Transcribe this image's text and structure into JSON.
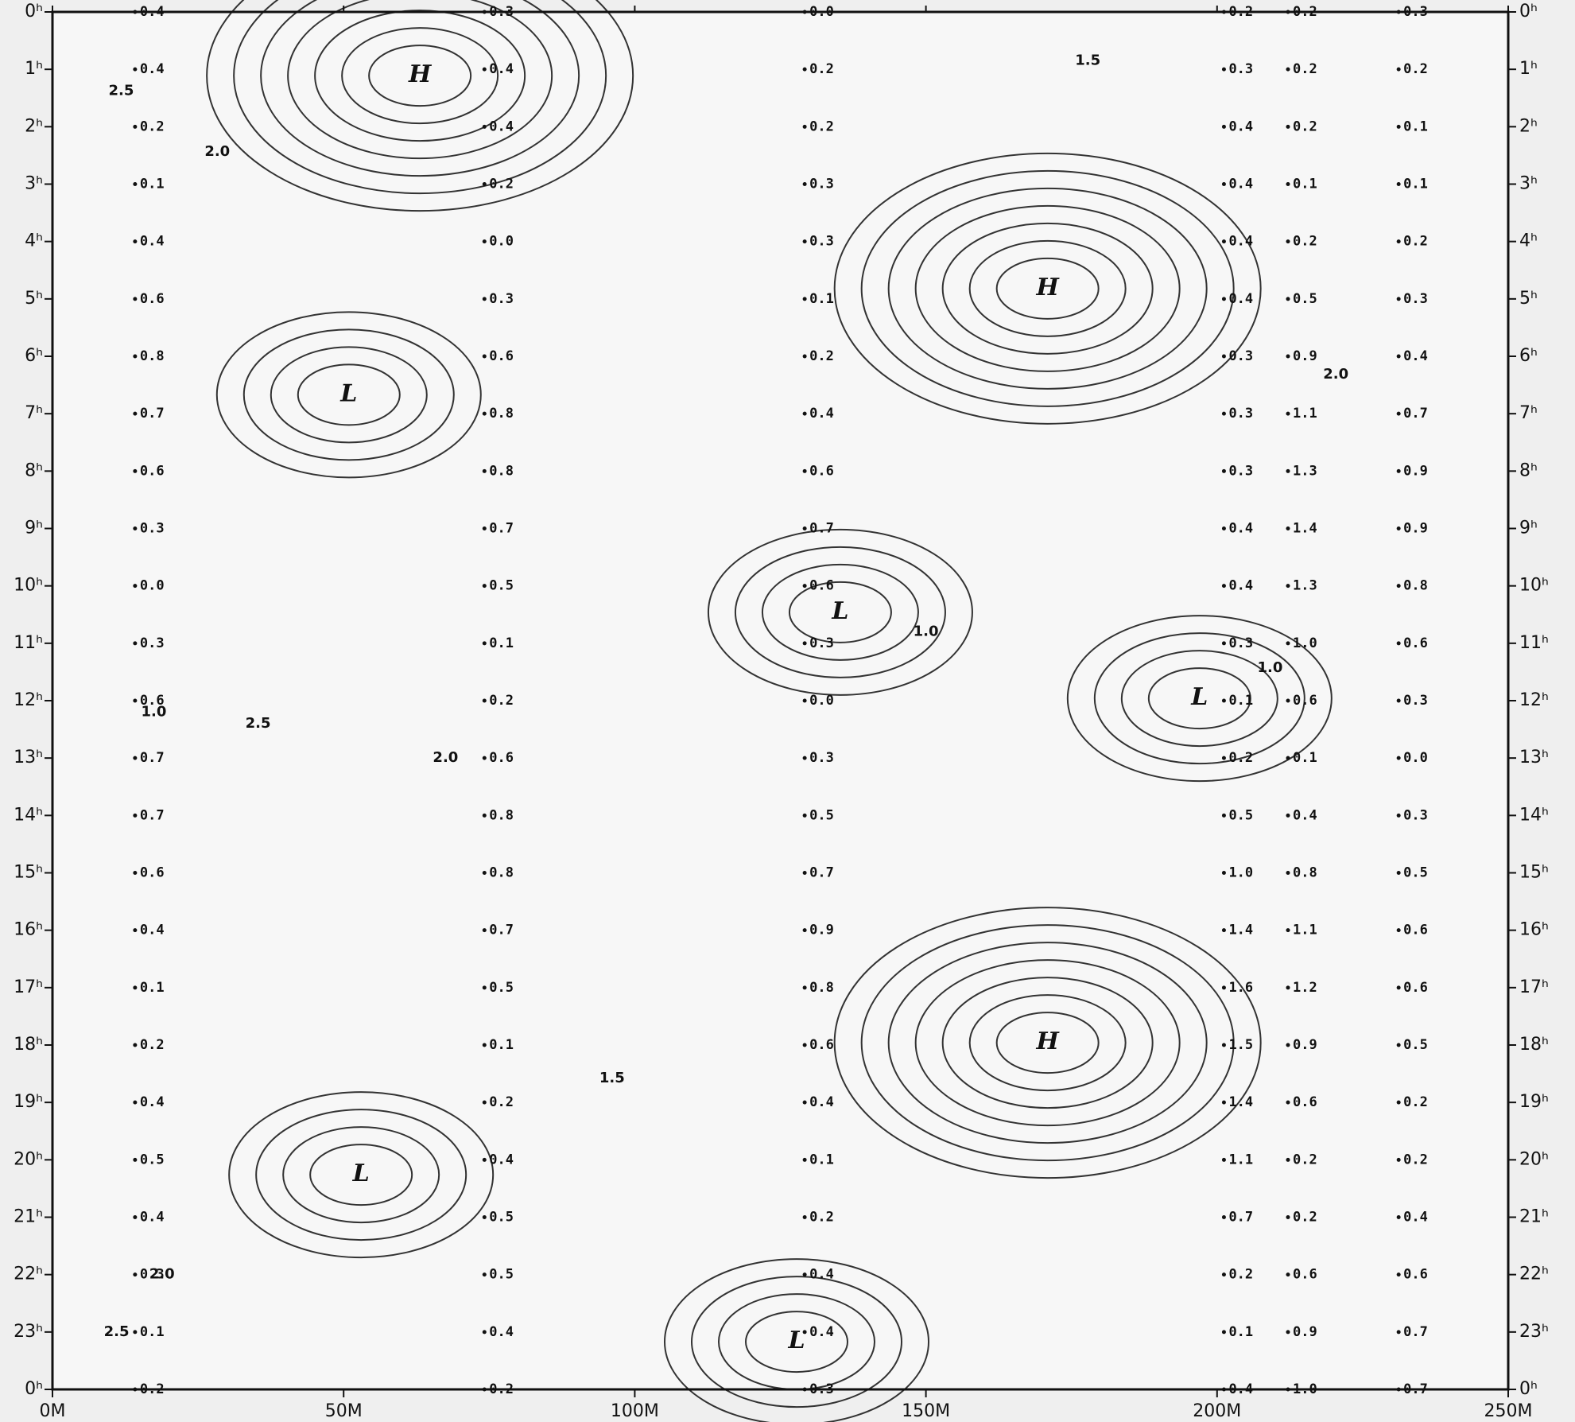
{
  "chart_data": {
    "type": "contour",
    "xlim": [
      0,
      250
    ],
    "xticks": [
      {
        "value": 0,
        "label": "0M"
      },
      {
        "value": 50,
        "label": "50M"
      },
      {
        "value": 100,
        "label": "100M"
      },
      {
        "value": 150,
        "label": "150M"
      },
      {
        "value": 200,
        "label": "200M"
      },
      {
        "value": 250,
        "label": "250M"
      }
    ],
    "ylim": [
      0,
      24
    ],
    "invert_y": true,
    "yticks": [
      {
        "value": 0,
        "label": "0ʰ"
      },
      {
        "value": 1,
        "label": "1ʰ"
      },
      {
        "value": 2,
        "label": "2ʰ"
      },
      {
        "value": 3,
        "label": "3ʰ"
      },
      {
        "value": 4,
        "label": "4ʰ"
      },
      {
        "value": 5,
        "label": "5ʰ"
      },
      {
        "value": 6,
        "label": "6ʰ"
      },
      {
        "value": 7,
        "label": "7ʰ"
      },
      {
        "value": 8,
        "label": "8ʰ"
      },
      {
        "value": 9,
        "label": "9ʰ"
      },
      {
        "value": 10,
        "label": "10ʰ"
      },
      {
        "value": 11,
        "label": "11ʰ"
      },
      {
        "value": 12,
        "label": "12ʰ"
      },
      {
        "value": 13,
        "label": "13ʰ"
      },
      {
        "value": 14,
        "label": "14ʰ"
      },
      {
        "value": 15,
        "label": "15ʰ"
      },
      {
        "value": 16,
        "label": "16ʰ"
      },
      {
        "value": 17,
        "label": "17ʰ"
      },
      {
        "value": 18,
        "label": "18ʰ"
      },
      {
        "value": 19,
        "label": "19ʰ"
      },
      {
        "value": 20,
        "label": "20ʰ"
      },
      {
        "value": 21,
        "label": "21ʰ"
      },
      {
        "value": 22,
        "label": "22ʰ"
      },
      {
        "value": 23,
        "label": "23ʰ"
      },
      {
        "value": 24,
        "label": "0ʰ"
      }
    ],
    "color": "#111111",
    "series": [
      {
        "x": 15,
        "values": [
          0.4,
          0.4,
          0.2,
          0.1,
          0.4,
          0.6,
          0.8,
          0.7,
          0.6,
          0.3,
          0.0,
          0.3,
          0.6,
          0.7,
          0.7,
          0.6,
          0.4,
          0.1,
          0.2,
          0.4,
          0.5,
          0.4,
          0.3,
          0.1,
          0.2
        ],
        "value_labels": [
          "0.4",
          "0.4",
          "0.2",
          "0.1",
          "0.4",
          "0.6",
          "0.8",
          "0.7",
          "0.6",
          "0.3",
          "0.0",
          "0.3",
          "0.6",
          "0.7",
          "0.7",
          "0.6",
          "0.4",
          "0.1",
          "0.2",
          "0.4",
          "0.5",
          "0.4",
          "0.3",
          "0.1",
          "0.2"
        ]
      },
      {
        "x": 75,
        "values": [
          0.3,
          0.4,
          0.4,
          0.2,
          0.0,
          0.3,
          0.6,
          0.8,
          0.8,
          0.7,
          0.5,
          0.1,
          0.2,
          0.6,
          0.8,
          0.8,
          0.7,
          0.5,
          0.1,
          0.2,
          0.4,
          0.5,
          0.5,
          0.4,
          0.2
        ],
        "value_labels": [
          "0.3",
          "0.4",
          "0.4",
          "0.2",
          "0.0",
          "0.3",
          "0.6",
          "0.8",
          "0.8",
          "0.7",
          "0.5",
          "0.1",
          "0.2",
          "0.6",
          "0.8",
          "0.8",
          "0.7",
          "0.5",
          "0.1",
          "0.2",
          "0.4",
          "0.5",
          "0.5",
          "0.4",
          "0.2"
        ]
      },
      {
        "x": 130,
        "values": [
          0.0,
          0.2,
          0.2,
          0.3,
          0.3,
          0.1,
          0.2,
          0.4,
          0.6,
          0.7,
          0.6,
          0.3,
          0.0,
          0.3,
          0.5,
          0.7,
          0.9,
          0.8,
          0.6,
          0.4,
          0.1,
          0.2,
          0.4,
          0.4,
          0.3
        ],
        "value_labels": [
          "0.0",
          "0.2",
          "0.2",
          "0.3",
          "0.3",
          "0.1",
          "0.2",
          "0.4",
          "0.6",
          "0.7",
          "0.6",
          "0.3",
          "0.0",
          "0.3",
          "0.5",
          "0.7",
          "0.9",
          "0.8",
          "0.6",
          "0.4",
          "0.1",
          "0.2",
          "0.4",
          "0.4",
          "0.3"
        ]
      },
      {
        "x": 202,
        "values": [
          0.2,
          0.3,
          0.4,
          0.4,
          0.4,
          0.4,
          0.3,
          0.3,
          0.3,
          0.4,
          0.4,
          0.3,
          0.1,
          0.2,
          0.5,
          1.0,
          1.4,
          1.6,
          1.5,
          1.4,
          1.1,
          0.7,
          0.2,
          0.1,
          0.4
        ],
        "value_labels": [
          "0.2",
          "0.3",
          "0.4",
          "0.4",
          "0.4",
          "0.4",
          "0.3",
          "0.3",
          "0.3",
          "0.4",
          "0.4",
          "0.3",
          "0.1",
          "0.2",
          "0.5",
          "1.0",
          "1.4",
          "1.6",
          "1.5",
          "1.4",
          "1.1",
          "0.7",
          "0.2",
          "0.1",
          "0.4"
        ]
      },
      {
        "x": 213,
        "values": [
          0.2,
          0.2,
          0.2,
          0.1,
          0.2,
          0.5,
          0.9,
          1.1,
          1.3,
          1.4,
          1.3,
          1.0,
          0.6,
          0.1,
          0.4,
          0.8,
          1.1,
          1.2,
          0.9,
          0.6,
          0.2,
          0.2,
          0.6,
          0.9,
          1.0
        ],
        "value_labels": [
          "0.2",
          "0.2",
          "0.2",
          "0.1",
          "0.2",
          "0.5",
          "0.9",
          "1.1",
          "1.3",
          "1.4",
          "1.3",
          "1.0",
          "0.6",
          "0.1",
          "0.4",
          "0.8",
          "1.1",
          "1.2",
          "0.9",
          "0.6",
          "0.2",
          "0.2",
          "0.6",
          "0.9",
          "1.0"
        ]
      },
      {
        "x": 232,
        "values": [
          0.3,
          0.2,
          0.1,
          0.1,
          0.2,
          0.3,
          0.4,
          0.7,
          0.9,
          0.9,
          0.8,
          0.6,
          0.3,
          0.0,
          0.3,
          0.5,
          0.6,
          0.6,
          0.5,
          0.2,
          0.2,
          0.4,
          0.6,
          0.7,
          0.7
        ],
        "value_labels": [
          "0.3",
          "0.2",
          "0.1",
          "0.1",
          "0.2",
          "0.3",
          "0.4",
          "0.7",
          "0.9",
          "0.9",
          "0.8",
          "0.6",
          "0.3",
          "0.0",
          "0.3",
          "0.5",
          "0.6",
          "0.6",
          "0.5",
          "0.2",
          "0.2",
          "0.4",
          "0.6",
          "0.7",
          "0.7"
        ]
      }
    ],
    "markers": [
      {
        "text": "H",
        "x": 63.1,
        "y": 1.11
      },
      {
        "text": "H",
        "x": 170.9,
        "y": 4.82
      },
      {
        "text": "H",
        "x": 170.9,
        "y": 17.96
      },
      {
        "text": "L",
        "x": 50.9,
        "y": 6.67
      },
      {
        "text": "L",
        "x": 135.3,
        "y": 10.46
      },
      {
        "text": "L",
        "x": 197,
        "y": 11.96
      },
      {
        "text": "L",
        "x": 53,
        "y": 20.26
      },
      {
        "text": "L",
        "x": 127.8,
        "y": 23.17
      }
    ],
    "contour_labels": [
      {
        "text": "1.5",
        "x": 177.8,
        "y": 0.85
      },
      {
        "text": "2.5",
        "x": 11.8,
        "y": 1.38
      },
      {
        "text": "2.0",
        "x": 28.3,
        "y": 2.44
      },
      {
        "text": "1.0",
        "x": 150,
        "y": 10.8
      },
      {
        "text": "2.0",
        "x": 220.4,
        "y": 6.32
      },
      {
        "text": "2.5",
        "x": 35.3,
        "y": 12.4
      },
      {
        "text": "2.0",
        "x": 67.5,
        "y": 13.0
      },
      {
        "text": "1.5",
        "x": 96.1,
        "y": 18.58
      },
      {
        "text": "1.0",
        "x": 209.1,
        "y": 11.43
      },
      {
        "text": "1.0",
        "x": 17.4,
        "y": 12.2
      },
      {
        "text": "2.0",
        "x": 18.8,
        "y": 22.0
      },
      {
        "text": "2.5",
        "x": 11,
        "y": 23.0
      }
    ]
  }
}
